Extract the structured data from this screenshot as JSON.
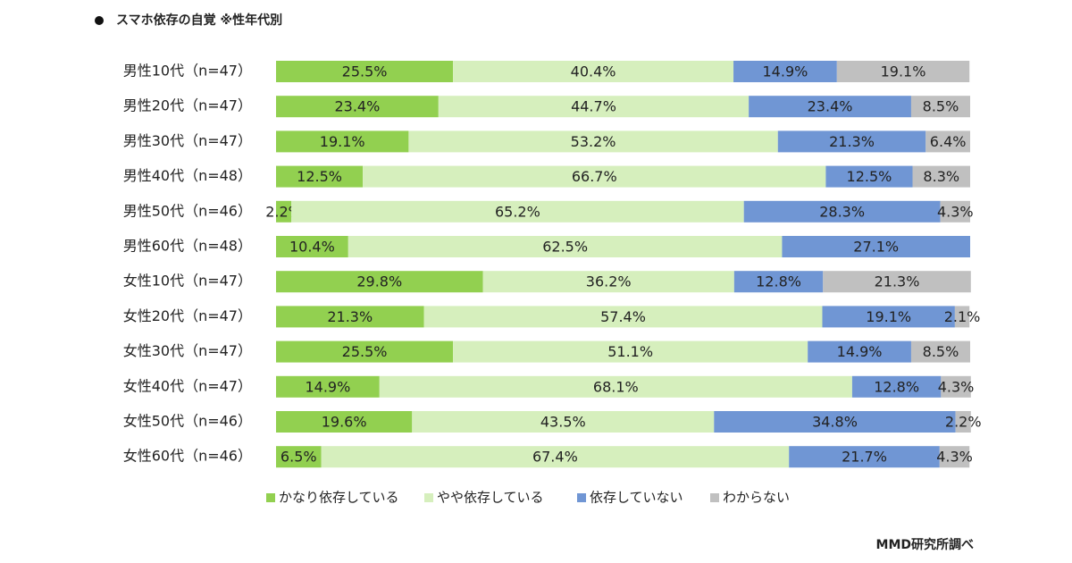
{
  "chart_data": {
    "type": "bar",
    "orientation": "horizontal",
    "stacked": true,
    "title": "スマホ依存の自覚 ※性年代別",
    "source": "MMD研究所調べ",
    "categories": [
      "男性10代（n=47）",
      "男性20代（n=47）",
      "男性30代（n=47）",
      "男性40代（n=48）",
      "男性50代（n=46）",
      "男性60代（n=48）",
      "女性10代（n=47）",
      "女性20代（n=47）",
      "女性30代（n=47）",
      "女性40代（n=47）",
      "女性50代（n=46）",
      "女性60代（n=46）"
    ],
    "xlim": [
      0,
      100
    ],
    "legend_position": "bottom",
    "series": [
      {
        "name": "かなり依存している",
        "color": "#92d050",
        "values": [
          25.5,
          23.4,
          19.1,
          12.5,
          2.2,
          10.4,
          29.8,
          21.3,
          25.5,
          14.9,
          19.6,
          6.5
        ],
        "value_labels": [
          "25.5%",
          "23.4%",
          "19.1%",
          "12.5%",
          "2.2%",
          "10.4%",
          "29.8%",
          "21.3%",
          "25.5%",
          "14.9%",
          "19.6%",
          "6.5%"
        ]
      },
      {
        "name": "やや依存している",
        "color": "#d6efbd",
        "values": [
          40.4,
          44.7,
          53.2,
          66.7,
          65.2,
          62.5,
          36.2,
          57.4,
          51.1,
          68.1,
          43.5,
          67.4
        ],
        "value_labels": [
          "40.4%",
          "44.7%",
          "53.2%",
          "66.7%",
          "65.2%",
          "62.5%",
          "36.2%",
          "57.4%",
          "51.1%",
          "68.1%",
          "43.5%",
          "67.4%"
        ]
      },
      {
        "name": "依存していない",
        "color": "#7096d4",
        "values": [
          14.9,
          23.4,
          21.3,
          12.5,
          28.3,
          27.1,
          12.8,
          19.1,
          14.9,
          12.8,
          34.8,
          21.7
        ],
        "value_labels": [
          "14.9%",
          "23.4%",
          "21.3%",
          "12.5%",
          "28.3%",
          "27.1%",
          "12.8%",
          "19.1%",
          "14.9%",
          "12.8%",
          "34.8%",
          "21.7%"
        ]
      },
      {
        "name": "わからない",
        "color": "#c0c0c0",
        "values": [
          19.1,
          8.5,
          6.4,
          8.3,
          4.3,
          null,
          21.3,
          2.1,
          8.5,
          4.3,
          2.2,
          4.3
        ],
        "value_labels": [
          "19.1%",
          "8.5%",
          "6.4%",
          "8.3%",
          "4.3%",
          null,
          "21.3%",
          "2.1%",
          "8.5%",
          "4.3%",
          "2.2%",
          "4.3%"
        ]
      }
    ]
  }
}
